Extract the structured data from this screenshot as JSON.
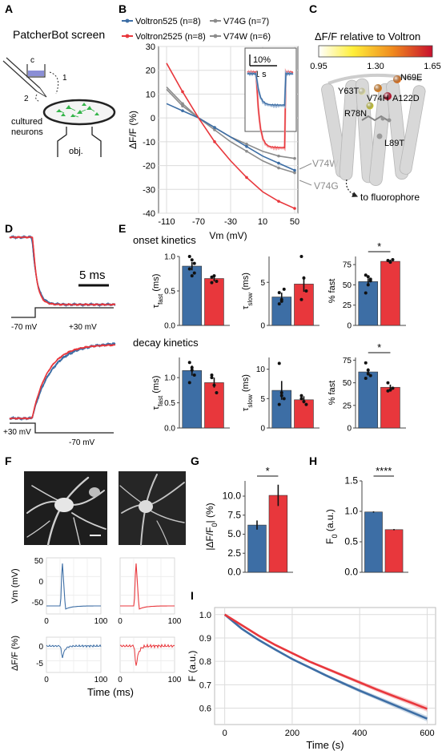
{
  "colors": {
    "blue": "#3d6ea5",
    "red": "#e8373c",
    "grey": "#8c8c8c",
    "grid": "#dcdcdc",
    "black": "#222222"
  },
  "panels": {
    "A": {
      "label": "A",
      "title": "PatcherBot screen",
      "labels": [
        "c",
        "1",
        "2",
        "cultured",
        "neurons",
        "obj."
      ]
    },
    "B": {
      "label": "B"
    },
    "C": {
      "label": "C",
      "colorbar_title": "ΔF/F relative to Voltron",
      "colorbar_ticks": [
        "0.95",
        "1.30",
        "1.65"
      ],
      "residues": [
        "N69E",
        "Y63T",
        "V74H",
        "A122D",
        "R78N",
        "L89T"
      ],
      "caption": "to fluorophore"
    },
    "D": {
      "label": "D",
      "scalebar": "5 ms",
      "top_steps": [
        "-70 mV",
        "+30 mV"
      ],
      "bottom_steps": [
        "+30 mV",
        "-70 mV"
      ]
    },
    "E": {
      "label": "E",
      "onset_title": "onset kinetics",
      "decay_title": "decay kinetics"
    },
    "F": {
      "label": "F"
    },
    "G": {
      "label": "G"
    },
    "H": {
      "label": "H"
    },
    "I": {
      "label": "I"
    }
  },
  "chart_data": [
    {
      "id": "B",
      "type": "line",
      "xlabel": "Vm (mV)",
      "ylabel": "ΔF/F (%)",
      "xlim": [
        -110,
        50
      ],
      "ylim": [
        -40,
        30
      ],
      "xticks": [
        -110,
        -70,
        -30,
        10,
        50
      ],
      "yticks": [
        30,
        20,
        10,
        0,
        -10,
        -20,
        -30,
        -40
      ],
      "x": [
        -110,
        -90,
        -70,
        -50,
        -30,
        -10,
        10,
        30,
        50
      ],
      "series": [
        {
          "name": "Voltron525 (n=8)",
          "color": "blue",
          "values": [
            6,
            3,
            0,
            -4,
            -8,
            -12,
            -16,
            -19,
            -22
          ]
        },
        {
          "name": "Voltron2525 (n=8)",
          "color": "red",
          "values": [
            23,
            11,
            0,
            -10,
            -18,
            -25,
            -31,
            -35,
            -38
          ]
        },
        {
          "name": "V74G (n=7)",
          "color": "grey",
          "values": [
            13,
            6,
            0,
            -5,
            -10,
            -14,
            -18,
            -21,
            -23
          ]
        },
        {
          "name": "V74W (n=6)",
          "color": "grey",
          "values": [
            12,
            5,
            0,
            -4,
            -8,
            -11,
            -14,
            -16,
            -17
          ]
        }
      ],
      "annotations": [
        "V74W",
        "V74G"
      ],
      "inset_scale": [
        "10%",
        "1 s"
      ]
    },
    {
      "id": "E-onset-tau-fast",
      "type": "bar",
      "ylabel": "τfast (ms)",
      "ylim": [
        0,
        1.0
      ],
      "yticks": [
        "0.0",
        "0.5",
        "1.0"
      ],
      "values": [
        0.86,
        0.68
      ],
      "errors": [
        0.06,
        0.04
      ],
      "points": [
        [
          1.0,
          0.95,
          0.9,
          0.82,
          0.72,
          0.76
        ],
        [
          0.7,
          0.72,
          0.64,
          0.62
        ]
      ]
    },
    {
      "id": "E-onset-tau-slow",
      "type": "bar",
      "ylabel": "τslow (ms)",
      "ylim": [
        0,
        8
      ],
      "yticks": [
        "0",
        "5"
      ],
      "values": [
        3.3,
        4.8
      ],
      "errors": [
        0.5,
        0.9
      ],
      "points": [
        [
          3.8,
          2.8,
          4.2,
          2.5,
          3.0
        ],
        [
          8.0,
          5.5,
          4.0,
          3.0
        ]
      ]
    },
    {
      "id": "E-onset-pct-fast",
      "type": "bar",
      "ylabel": "% fast",
      "ylim": [
        0,
        85
      ],
      "yticks": [
        "0",
        "25",
        "50",
        "75"
      ],
      "values": [
        54,
        79
      ],
      "errors": [
        4,
        2
      ],
      "points": [
        [
          62,
          50,
          55,
          40,
          60,
          57
        ],
        [
          80,
          78,
          81
        ]
      ],
      "significance": "*"
    },
    {
      "id": "E-decay-tau-fast",
      "type": "bar",
      "ylabel": "τfast (ms)",
      "ylim": [
        0,
        1.4
      ],
      "yticks": [
        "0.0",
        "0.5",
        "1.0"
      ],
      "values": [
        1.14,
        0.9
      ],
      "errors": [
        0.1,
        0.1
      ],
      "points": [
        [
          1.3,
          1.15,
          1.05,
          0.9,
          1.2
        ],
        [
          1.05,
          0.85,
          0.7,
          1.0
        ]
      ]
    },
    {
      "id": "E-decay-tau-slow",
      "type": "bar",
      "ylabel": "τslow (ms)",
      "ylim": [
        0,
        12
      ],
      "yticks": [
        "0",
        "5",
        "10"
      ],
      "values": [
        6.4,
        4.8
      ],
      "errors": [
        1.6,
        0.6
      ],
      "points": [
        [
          11.0,
          6.0,
          5.0,
          4.0,
          5.5
        ],
        [
          5.5,
          4.5,
          4.0,
          5.0
        ]
      ]
    },
    {
      "id": "E-decay-pct-fast",
      "type": "bar",
      "ylabel": "% fast",
      "ylim": [
        0,
        78
      ],
      "yticks": [
        "0",
        "25",
        "50",
        "75"
      ],
      "values": [
        62,
        45
      ],
      "errors": [
        4,
        3
      ],
      "points": [
        [
          72,
          60,
          58,
          55,
          64
        ],
        [
          50,
          42,
          44,
          41
        ]
      ],
      "significance": "*"
    },
    {
      "id": "F-traces",
      "type": "line",
      "xlabel": "Time (ms)",
      "ylabels": [
        "Vm (mV)",
        "ΔF/F (%)"
      ],
      "vm_yticks": [
        "50",
        "0",
        "-50"
      ],
      "dff_yticks": [
        "0",
        "-5"
      ],
      "xticks": [
        "0",
        "100"
      ]
    },
    {
      "id": "G",
      "type": "bar",
      "ylabel": "|ΔF/F0| (%)",
      "ylim": [
        0,
        12
      ],
      "yticks": [
        "0.0",
        "2.5",
        "5.0",
        "7.5",
        "10.0"
      ],
      "values": [
        6.2,
        10.1
      ],
      "errors": [
        0.6,
        1.4
      ],
      "significance": "*"
    },
    {
      "id": "H",
      "type": "bar",
      "ylabel": "F0 (a.u.)",
      "ylim": [
        0,
        1.5
      ],
      "yticks": [
        "0.0",
        "0.5",
        "1.0",
        "1.5"
      ],
      "values": [
        0.99,
        0.7
      ],
      "errors": [
        0.01,
        0.01
      ],
      "significance": "****"
    },
    {
      "id": "I",
      "type": "line",
      "xlabel": "Time (s)",
      "ylabel": "F (a.u.)",
      "xlim": [
        -30,
        625
      ],
      "ylim": [
        0.53,
        1.03
      ],
      "xticks": [
        0,
        200,
        400,
        600
      ],
      "yticks": [
        0.6,
        0.7,
        0.8,
        0.9,
        1.0
      ],
      "x": [
        0,
        50,
        100,
        150,
        200,
        250,
        300,
        350,
        400,
        450,
        500,
        550,
        600
      ],
      "series": [
        {
          "color": "blue",
          "values": [
            1.0,
            0.94,
            0.892,
            0.85,
            0.81,
            0.775,
            0.74,
            0.707,
            0.675,
            0.645,
            0.615,
            0.585,
            0.555
          ]
        },
        {
          "color": "red",
          "values": [
            1.0,
            0.955,
            0.91,
            0.87,
            0.835,
            0.8,
            0.77,
            0.74,
            0.71,
            0.68,
            0.652,
            0.625,
            0.597
          ]
        }
      ]
    }
  ]
}
